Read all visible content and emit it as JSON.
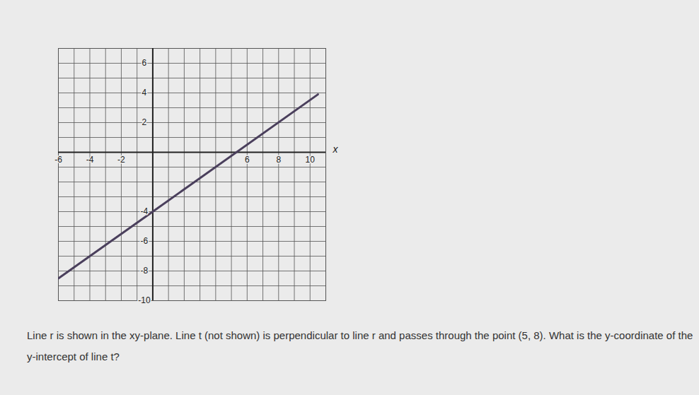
{
  "chart_data": {
    "type": "line",
    "x_label": "x",
    "xlim": [
      -6,
      11
    ],
    "ylim": [
      -10,
      7
    ],
    "xticks": [
      -6,
      -4,
      -2,
      6,
      8,
      10
    ],
    "yticks": [
      -10,
      -8,
      -6,
      -4,
      2,
      4,
      6
    ],
    "grid": true,
    "color": "#4a3f5c",
    "x": [
      -6,
      0,
      10.5
    ],
    "values": [
      -8.5,
      -4,
      3.9
    ],
    "annotations": [
      "Line r is shown in the xy-plane. Line t (not shown) is perpendicular to line r and passes through the point (5, 8). What is the y-coordinate of the y-intercept of line t?"
    ]
  }
}
